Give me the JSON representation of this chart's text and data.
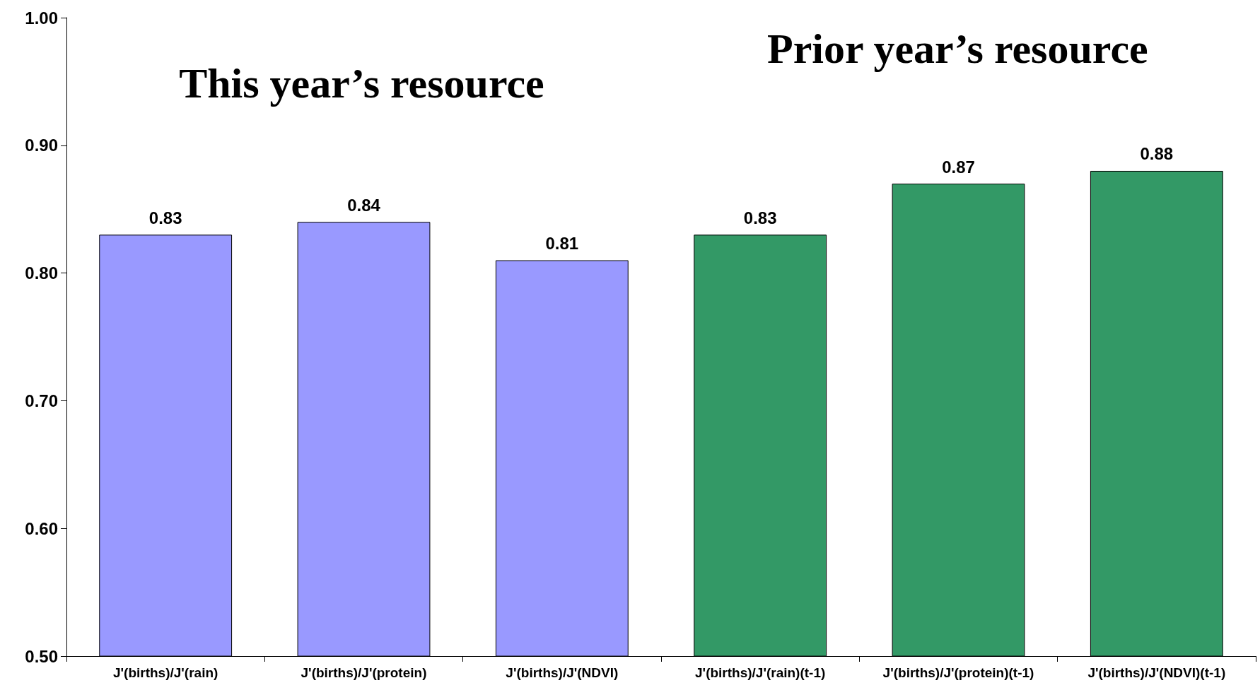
{
  "chart_data": {
    "type": "bar",
    "categories": [
      "J'(births)/J'(rain)",
      "J'(births)/J'(protein)",
      "J'(births)/J'(NDVI)",
      "J'(births)/J'(rain)(t-1)",
      "J'(births)/J'(protein)(t-1)",
      "J'(births)/J'(NDVI)(t-1)"
    ],
    "values": [
      0.83,
      0.84,
      0.81,
      0.83,
      0.87,
      0.88
    ],
    "colors": [
      "#9999ff",
      "#9999ff",
      "#9999ff",
      "#339966",
      "#339966",
      "#339966"
    ],
    "ylim": [
      0.5,
      1.0
    ],
    "yticks": [
      {
        "value": 0.5,
        "label": "0.50"
      },
      {
        "value": 0.6,
        "label": "0.60"
      },
      {
        "value": 0.7,
        "label": "0.70"
      },
      {
        "value": 0.8,
        "label": "0.80"
      },
      {
        "value": 0.9,
        "label": "0.90"
      },
      {
        "value": 1.0,
        "label": "1.00"
      }
    ],
    "data_labels": true,
    "grid": false,
    "annotations": [
      "This year’s resource",
      "Prior year’s resource"
    ]
  }
}
